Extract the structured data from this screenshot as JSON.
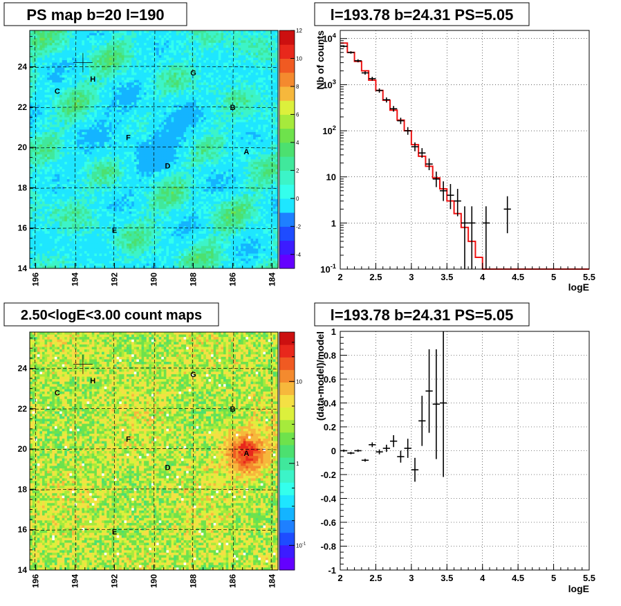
{
  "colors": {
    "palette": [
      "#6400ff",
      "#3c1cff",
      "#1e4cff",
      "#1e80ff",
      "#14b4ff",
      "#1ee6ff",
      "#34ffec",
      "#3cf4c8",
      "#40e89c",
      "#4ce070",
      "#6ee24c",
      "#a6ea3c",
      "#dcf03c",
      "#f4e044",
      "#f6b83c",
      "#f48a2e",
      "#f05a22",
      "#e8281c",
      "#cc1010"
    ],
    "model_line": "#ee1111",
    "data_marker": "#000000"
  },
  "panels": {
    "ps_map": {
      "title": "PS map b=20 l=190",
      "x_ticks": [
        "196",
        "194",
        "192",
        "190",
        "188",
        "186",
        "184"
      ],
      "y_ticks": [
        "14",
        "16",
        "18",
        "20",
        "22",
        "24"
      ],
      "colorbar_ticks": [
        "12",
        "10",
        "8",
        "6",
        "4",
        "2",
        "0",
        "-2",
        "-4"
      ]
    },
    "count_map": {
      "title": "2.50<logE<3.00 count maps",
      "x_ticks": [
        "196",
        "194",
        "192",
        "190",
        "188",
        "186",
        "184"
      ],
      "y_ticks": [
        "14",
        "16",
        "18",
        "20",
        "22",
        "24"
      ],
      "colorbar_ticks": [
        "10",
        "1",
        "10-1"
      ]
    },
    "spectrum": {
      "title": "l=193.78 b=24.31 PS=5.05",
      "xlabel": "logE",
      "ylabel": "Nb of counts",
      "x_ticks": [
        "2",
        "2.5",
        "3",
        "3.5",
        "4",
        "4.5",
        "5",
        "5.5"
      ],
      "y_ticks": [
        "10-1",
        "1",
        "10",
        "102",
        "103",
        "104"
      ]
    },
    "residual": {
      "title": "l=193.78 b=24.31 PS=5.05",
      "xlabel": "logE",
      "ylabel": "(data-model)/model",
      "x_ticks": [
        "2",
        "2.5",
        "3",
        "3.5",
        "4",
        "4.5",
        "5",
        "5.5"
      ],
      "y_ticks": [
        "1",
        "0.8",
        "0.6",
        "0.4",
        "0.2",
        "0",
        "-0.2",
        "-0.4",
        "-0.6",
        "-0.8",
        "-1"
      ]
    }
  },
  "chart_data": [
    {
      "type": "heatmap",
      "title": "PS map b=20 l=190",
      "xlim": [
        196.3,
        183.7
      ],
      "ylim": [
        14,
        25.8
      ],
      "zlim": [
        -5,
        12
      ],
      "grid": true,
      "markers": [
        {
          "label": "H",
          "l": 193.1,
          "b": 23.4
        },
        {
          "label": "C",
          "l": 194.9,
          "b": 22.8
        },
        {
          "label": "G",
          "l": 188.0,
          "b": 23.7
        },
        {
          "label": "B",
          "l": 186.0,
          "b": 22.0
        },
        {
          "label": "F",
          "l": 191.3,
          "b": 20.5
        },
        {
          "label": "A",
          "l": 185.3,
          "b": 19.8
        },
        {
          "label": "D",
          "l": 189.3,
          "b": 19.1
        },
        {
          "label": "E",
          "l": 192.0,
          "b": 15.9
        }
      ],
      "crosshair": {
        "l": 193.6,
        "b": 24.2
      }
    },
    {
      "type": "heatmap",
      "title": "2.50<logE<3.00 count maps",
      "xlim": [
        196.3,
        183.7
      ],
      "ylim": [
        14,
        25.8
      ],
      "zlim": [
        0.05,
        40
      ],
      "zscale": "log",
      "grid": true,
      "hotspot": {
        "label": "A",
        "l": 185.3,
        "b": 19.8
      },
      "markers": [
        {
          "label": "H",
          "l": 193.1,
          "b": 23.4
        },
        {
          "label": "C",
          "l": 194.9,
          "b": 22.8
        },
        {
          "label": "G",
          "l": 188.0,
          "b": 23.7
        },
        {
          "label": "B",
          "l": 186.0,
          "b": 22.0
        },
        {
          "label": "F",
          "l": 191.3,
          "b": 20.5
        },
        {
          "label": "A",
          "l": 185.3,
          "b": 19.8
        },
        {
          "label": "D",
          "l": 189.3,
          "b": 19.1
        },
        {
          "label": "E",
          "l": 192.0,
          "b": 15.9
        }
      ],
      "crosshair": {
        "l": 193.6,
        "b": 24.2
      }
    },
    {
      "type": "line",
      "title": "l=193.78 b=24.31 PS=5.05",
      "xlabel": "logE",
      "ylabel": "Nb of counts",
      "xlim": [
        2,
        5.5
      ],
      "ylim": [
        0.1,
        15000
      ],
      "yscale": "log",
      "grid": true,
      "series": [
        {
          "kind": "step",
          "bin_edges": [
            2.0,
            2.1,
            2.2,
            2.3,
            2.4,
            2.5,
            2.6,
            2.7,
            2.8,
            2.9,
            3.0,
            3.1,
            3.2,
            3.3,
            3.4,
            3.5,
            3.6,
            3.7,
            3.8,
            3.9,
            4.0,
            4.1,
            5.5
          ],
          "values": [
            8000,
            5000,
            3200,
            2000,
            1250,
            750,
            460,
            280,
            170,
            100,
            50,
            28,
            17,
            9.5,
            5.5,
            3,
            1.6,
            0.8,
            0.4,
            0.18,
            0.1,
            0.1
          ]
        },
        {
          "kind": "errorbar",
          "points": [
            {
              "x": 2.05,
              "y": 6800,
              "lo": 6450,
              "hi": 7150
            },
            {
              "x": 2.15,
              "y": 5000,
              "lo": 4700,
              "hi": 5300
            },
            {
              "x": 2.25,
              "y": 3300,
              "lo": 3050,
              "hi": 3550
            },
            {
              "x": 2.35,
              "y": 1800,
              "lo": 1650,
              "hi": 1950
            },
            {
              "x": 2.45,
              "y": 1350,
              "lo": 1220,
              "hi": 1480
            },
            {
              "x": 2.55,
              "y": 750,
              "lo": 670,
              "hi": 830
            },
            {
              "x": 2.65,
              "y": 470,
              "lo": 410,
              "hi": 530
            },
            {
              "x": 2.75,
              "y": 300,
              "lo": 260,
              "hi": 345
            },
            {
              "x": 2.85,
              "y": 165,
              "lo": 140,
              "hi": 192
            },
            {
              "x": 2.95,
              "y": 100,
              "lo": 82,
              "hi": 120
            },
            {
              "x": 3.05,
              "y": 45,
              "lo": 36,
              "hi": 56
            },
            {
              "x": 3.15,
              "y": 33,
              "lo": 26,
              "hi": 42
            },
            {
              "x": 3.25,
              "y": 19,
              "lo": 14,
              "hi": 25
            },
            {
              "x": 3.35,
              "y": 9,
              "lo": 6,
              "hi": 13
            },
            {
              "x": 3.45,
              "y": 5,
              "lo": 3,
              "hi": 8
            },
            {
              "x": 3.55,
              "y": 4,
              "lo": 2,
              "hi": 7
            },
            {
              "x": 3.65,
              "y": 3,
              "lo": 1.4,
              "hi": 5.5
            },
            {
              "x": 3.75,
              "y": 1,
              "lo": 0.1,
              "hi": 2.3
            },
            {
              "x": 3.85,
              "y": 1,
              "lo": 0.1,
              "hi": 2.3
            },
            {
              "x": 4.05,
              "y": 1,
              "lo": 0.1,
              "hi": 2.3
            },
            {
              "x": 4.35,
              "y": 2,
              "lo": 0.6,
              "hi": 3.8
            }
          ]
        }
      ]
    },
    {
      "type": "scatter",
      "title": "l=193.78 b=24.31 PS=5.05",
      "xlabel": "logE",
      "ylabel": "(data-model)/model",
      "xlim": [
        2,
        5.5
      ],
      "ylim": [
        -1,
        1
      ],
      "grid": true,
      "points": [
        {
          "x": 2.05,
          "y": 0.0,
          "err": 0.01
        },
        {
          "x": 2.15,
          "y": -0.02,
          "err": 0.01
        },
        {
          "x": 2.25,
          "y": 0.0,
          "err": 0.01
        },
        {
          "x": 2.35,
          "y": -0.08,
          "err": 0.012
        },
        {
          "x": 2.45,
          "y": 0.05,
          "err": 0.02
        },
        {
          "x": 2.55,
          "y": -0.01,
          "err": 0.02
        },
        {
          "x": 2.65,
          "y": 0.02,
          "err": 0.03
        },
        {
          "x": 2.75,
          "y": 0.08,
          "err": 0.05
        },
        {
          "x": 2.85,
          "y": -0.05,
          "err": 0.05
        },
        {
          "x": 2.95,
          "y": 0.02,
          "err": 0.08
        },
        {
          "x": 3.05,
          "y": -0.16,
          "err": 0.1
        },
        {
          "x": 3.15,
          "y": 0.25,
          "err": 0.21
        },
        {
          "x": 3.25,
          "y": 0.5,
          "err": 0.35
        },
        {
          "x": 3.35,
          "y": 0.39,
          "err": 0.46
        },
        {
          "x": 3.45,
          "y": 0.4,
          "err": 0.62
        }
      ]
    }
  ]
}
